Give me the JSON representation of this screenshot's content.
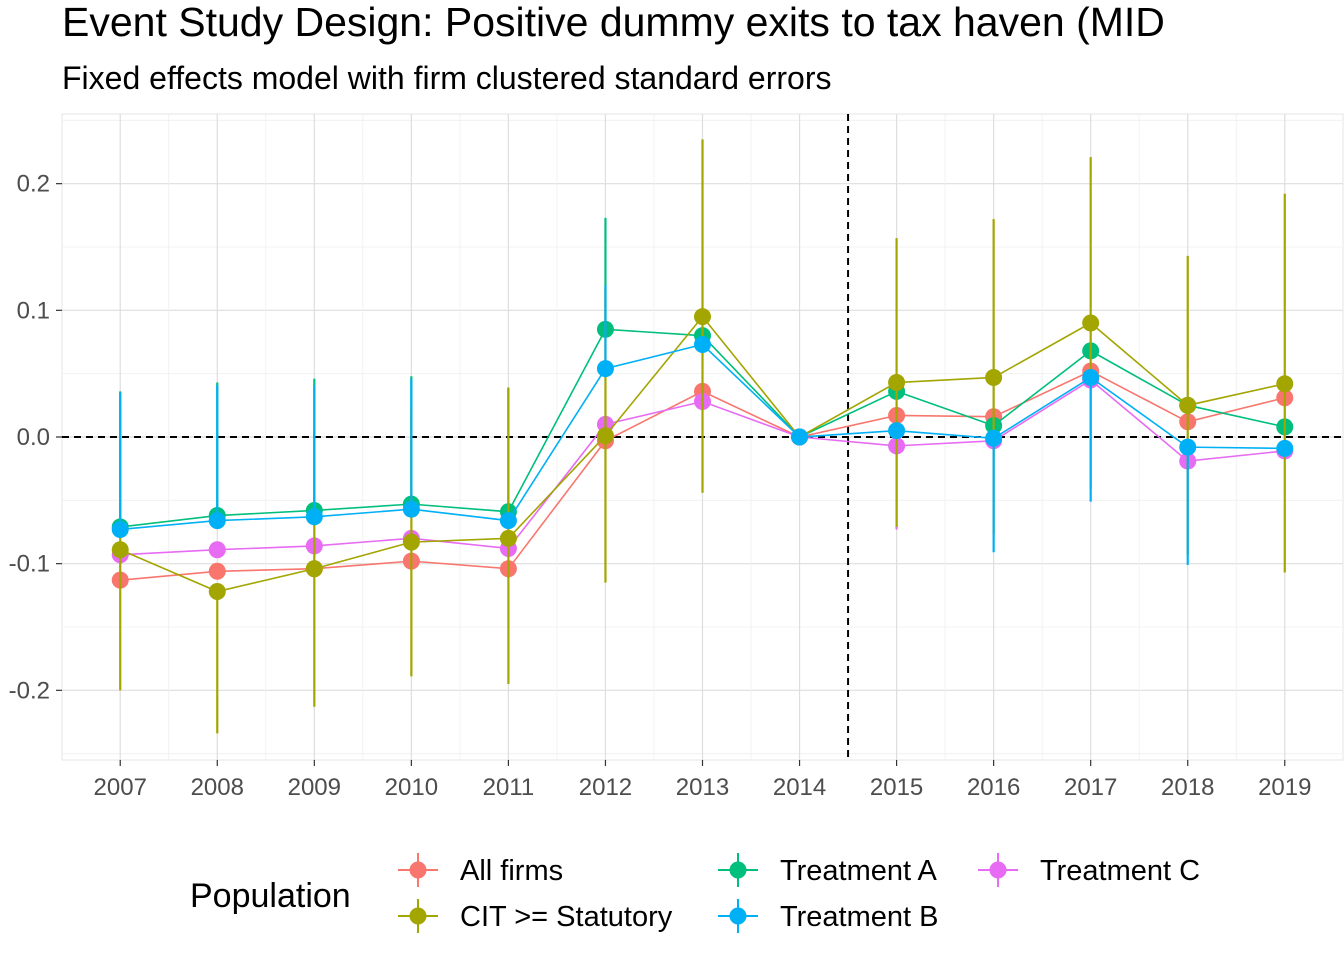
{
  "chart_data": {
    "type": "line",
    "title": "Event Study Design: Positive dummy exits to tax haven (MID",
    "subtitle": "Fixed effects model with firm clustered standard errors",
    "xlabel": "",
    "ylabel": "",
    "categories": [
      "2007",
      "2008",
      "2009",
      "2010",
      "2011",
      "2012",
      "2013",
      "2014",
      "2015",
      "2016",
      "2017",
      "2018",
      "2019"
    ],
    "ylim": [
      -0.255,
      0.255
    ],
    "yticks": [
      -0.2,
      -0.1,
      0.0,
      0.1,
      0.2
    ],
    "ytick_labels": [
      "-0.2",
      "-0.1",
      "0.0",
      "0.1",
      "0.2"
    ],
    "hline": 0.0,
    "vline": "between 2014 and 2015",
    "grid": true,
    "legend_title": "Population",
    "legend_position": "bottom",
    "series": [
      {
        "name": "All firms",
        "color": "#F8766D",
        "values": [
          -0.113,
          -0.106,
          -0.104,
          -0.098,
          -0.104,
          -0.003,
          0.036,
          0.0,
          0.017,
          0.016,
          0.052,
          0.012,
          0.031
        ],
        "lower": [
          -0.113,
          -0.106,
          -0.104,
          -0.098,
          -0.104,
          -0.003,
          0.036,
          0.0,
          0.017,
          0.016,
          0.052,
          0.012,
          0.031
        ],
        "upper": [
          -0.113,
          -0.106,
          -0.104,
          -0.098,
          -0.104,
          -0.003,
          0.036,
          0.0,
          0.017,
          0.016,
          0.052,
          0.012,
          0.031
        ]
      },
      {
        "name": "Treatment A",
        "color": "#00BF7D",
        "values": [
          -0.071,
          -0.062,
          -0.058,
          -0.053,
          -0.059,
          0.085,
          0.08,
          0.0,
          0.036,
          0.009,
          0.068,
          0.025,
          0.008
        ],
        "lower": [
          -0.071,
          -0.062,
          -0.058,
          -0.053,
          -0.059,
          0.085,
          0.08,
          0.0,
          0.036,
          0.009,
          0.068,
          0.025,
          0.008
        ],
        "upper": [
          0.036,
          0.043,
          0.046,
          0.048,
          0.039,
          0.173,
          0.08,
          0.0,
          0.036,
          0.009,
          0.068,
          0.025,
          0.008
        ]
      },
      {
        "name": "Treatment C",
        "color": "#E76BF3",
        "values": [
          -0.093,
          -0.089,
          -0.086,
          -0.08,
          -0.088,
          0.01,
          0.028,
          0.0,
          -0.007,
          -0.003,
          0.045,
          -0.019,
          -0.011
        ],
        "lower": [
          -0.093,
          -0.089,
          -0.086,
          -0.08,
          -0.088,
          0.01,
          0.028,
          0.0,
          -0.073,
          -0.003,
          0.045,
          -0.019,
          -0.011
        ],
        "upper": [
          -0.093,
          -0.089,
          -0.086,
          -0.08,
          -0.088,
          0.01,
          0.028,
          0.0,
          -0.007,
          -0.003,
          0.045,
          -0.019,
          -0.011
        ]
      },
      {
        "name": "CIT >= Statutory",
        "color": "#A3A500",
        "values": [
          -0.089,
          -0.122,
          -0.104,
          -0.083,
          -0.08,
          0.001,
          0.095,
          0.0,
          0.043,
          0.047,
          0.09,
          0.025,
          0.042
        ],
        "lower": [
          -0.2,
          -0.234,
          -0.213,
          -0.189,
          -0.195,
          -0.115,
          -0.044,
          0.0,
          -0.071,
          -0.077,
          -0.041,
          -0.093,
          -0.107
        ],
        "upper": [
          0.02,
          -0.122,
          0.004,
          0.022,
          0.039,
          0.117,
          0.235,
          0.0,
          0.157,
          0.172,
          0.221,
          0.143,
          0.192
        ]
      },
      {
        "name": "Treatment B",
        "color": "#00B0F6",
        "values": [
          -0.073,
          -0.066,
          -0.063,
          -0.057,
          -0.066,
          0.054,
          0.073,
          0.0,
          0.005,
          -0.001,
          0.047,
          -0.008,
          -0.009
        ],
        "lower": [
          -0.073,
          -0.066,
          -0.063,
          -0.057,
          -0.066,
          0.054,
          0.073,
          0.0,
          0.005,
          -0.091,
          -0.051,
          -0.101,
          -0.009
        ],
        "upper": [
          0.035,
          0.041,
          0.041,
          0.046,
          -0.066,
          0.12,
          0.073,
          0.0,
          0.005,
          -0.001,
          0.047,
          -0.008,
          -0.009
        ]
      }
    ],
    "legend_entries": [
      {
        "label": "All firms",
        "color": "#F8766D"
      },
      {
        "label": "CIT >= Statutory",
        "color": "#A3A500"
      },
      {
        "label": "Treatment A",
        "color": "#00BF7D"
      },
      {
        "label": "Treatment B",
        "color": "#00B0F6"
      },
      {
        "label": "Treatment C",
        "color": "#E76BF3"
      }
    ]
  }
}
